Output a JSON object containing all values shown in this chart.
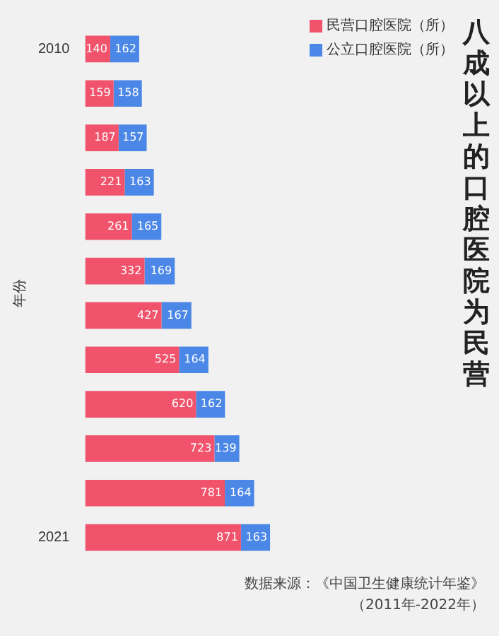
{
  "chart_data": {
    "type": "bar",
    "orientation": "horizontal",
    "stacked": true,
    "title": "八成以上的口腔医院为民营",
    "ylabel": "年份",
    "categories": [
      "2010",
      null,
      null,
      null,
      null,
      null,
      null,
      null,
      null,
      null,
      null,
      "2021"
    ],
    "series": [
      {
        "name": "民营口腔医院（所）",
        "color": "#f0536b",
        "values": [
          140,
          159,
          187,
          221,
          261,
          332,
          427,
          525,
          620,
          723,
          781,
          871
        ]
      },
      {
        "name": "公立口腔医院（所）",
        "color": "#4b87e6",
        "values": [
          162,
          158,
          157,
          163,
          165,
          169,
          167,
          164,
          162,
          139,
          164,
          163
        ]
      }
    ],
    "data_labels": true,
    "legend": "right",
    "tick_labels": "y",
    "annotations": [
      "数据来源：《中国卫生健康统计年鉴》",
      "（2011年-2022年）"
    ]
  }
}
